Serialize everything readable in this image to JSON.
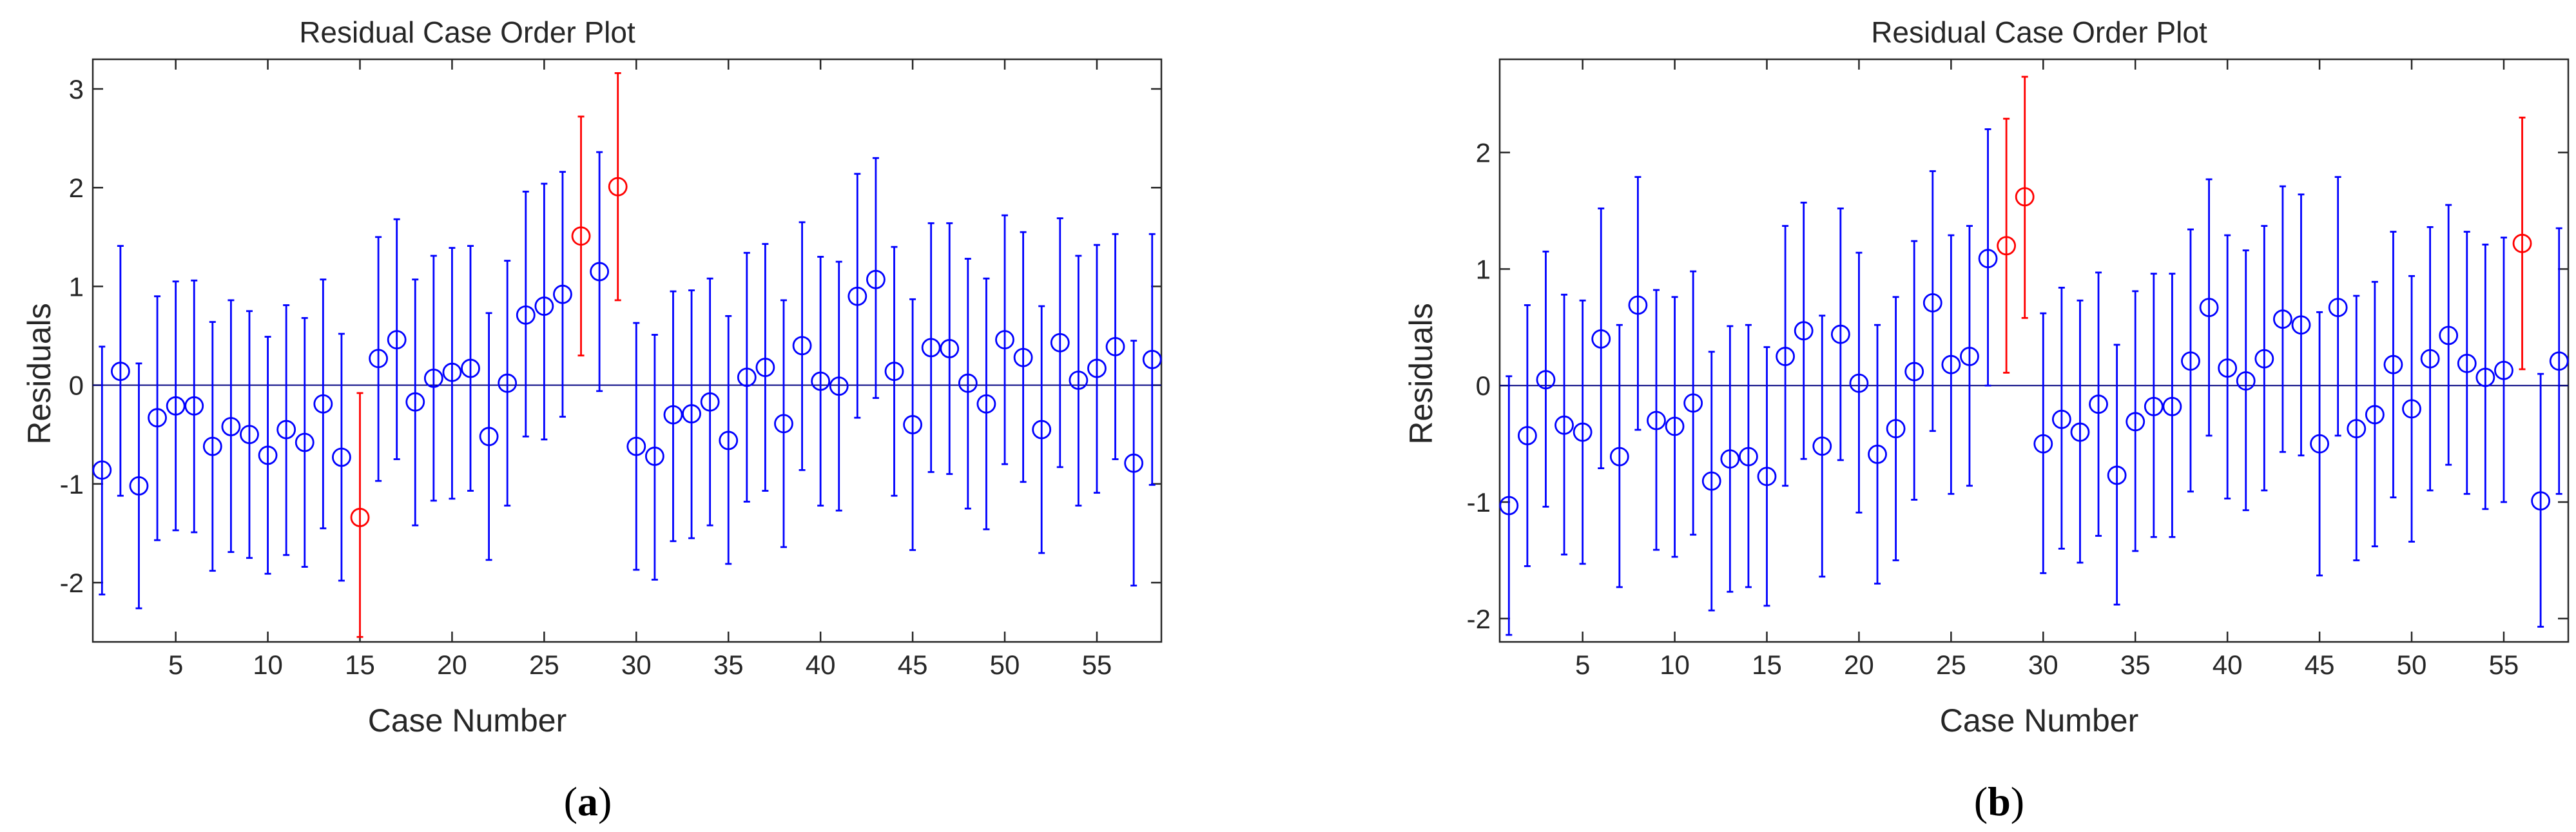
{
  "colors": {
    "normal": "#0000ff",
    "outlier": "#ff0000",
    "axis": "#262626",
    "zero_line": "#000080"
  },
  "chart_data": [
    {
      "type": "scatter",
      "title": "Residual Case Order Plot",
      "xlabel": "Case Number",
      "ylabel": "Residuals",
      "caption_letter": "a",
      "xlim": [
        0.5,
        58.5
      ],
      "ylim": [
        -2.6,
        3.3
      ],
      "xticks": [
        5,
        10,
        15,
        20,
        25,
        30,
        35,
        40,
        45,
        50,
        55
      ],
      "yticks": [
        -2,
        -1,
        0,
        1,
        2,
        3
      ],
      "grid": false,
      "legend": "none",
      "reference_line": 0,
      "x": [
        1,
        2,
        3,
        4,
        5,
        6,
        7,
        8,
        9,
        10,
        11,
        12,
        13,
        14,
        15,
        16,
        17,
        18,
        19,
        20,
        21,
        22,
        23,
        24,
        25,
        26,
        27,
        28,
        29,
        30,
        31,
        32,
        33,
        34,
        35,
        36,
        37,
        38,
        39,
        40,
        41,
        42,
        43,
        44,
        45,
        46,
        47,
        48,
        49,
        50,
        51,
        52,
        53,
        54,
        55,
        56,
        57,
        58
      ],
      "y": [
        -0.86,
        0.14,
        -1.02,
        -0.33,
        -0.21,
        -0.21,
        -0.62,
        -0.42,
        -0.5,
        -0.71,
        -0.45,
        -0.58,
        -0.19,
        -0.73,
        -1.34,
        0.27,
        0.46,
        -0.17,
        0.07,
        0.13,
        0.17,
        -0.52,
        0.02,
        0.71,
        0.8,
        0.92,
        1.51,
        1.15,
        2.01,
        -0.62,
        -0.72,
        -0.3,
        -0.29,
        -0.17,
        -0.56,
        0.08,
        0.18,
        -0.39,
        0.4,
        0.04,
        -0.01,
        0.9,
        1.07,
        0.14,
        -0.4,
        0.38,
        0.37,
        0.02,
        -0.19,
        0.46,
        0.28,
        -0.45,
        0.43,
        0.05,
        0.17,
        0.39,
        -0.79,
        0.26
      ],
      "lower": [
        -2.12,
        -1.12,
        -2.26,
        -1.57,
        -1.47,
        -1.49,
        -1.88,
        -1.69,
        -1.75,
        -1.91,
        -1.72,
        -1.84,
        -1.45,
        -1.98,
        -2.55,
        -0.97,
        -0.75,
        -1.42,
        -1.17,
        -1.15,
        -1.07,
        -1.77,
        -1.22,
        -0.52,
        -0.55,
        -0.32,
        0.3,
        -0.06,
        0.86,
        -1.87,
        -1.97,
        -1.58,
        -1.55,
        -1.42,
        -1.81,
        -1.18,
        -1.07,
        -1.64,
        -0.86,
        -1.22,
        -1.27,
        -0.33,
        -0.13,
        -1.12,
        -1.67,
        -0.88,
        -0.9,
        -1.25,
        -1.46,
        -0.8,
        -0.98,
        -1.7,
        -0.83,
        -1.22,
        -1.09,
        -0.75,
        -2.03,
        -1.01
      ],
      "upper": [
        0.39,
        1.41,
        0.22,
        0.9,
        1.05,
        1.06,
        0.64,
        0.86,
        0.75,
        0.49,
        0.81,
        0.68,
        1.07,
        0.52,
        -0.08,
        1.5,
        1.68,
        1.07,
        1.31,
        1.39,
        1.41,
        0.73,
        1.26,
        1.96,
        2.04,
        2.16,
        2.72,
        2.36,
        3.16,
        0.63,
        0.51,
        0.95,
        0.96,
        1.08,
        0.7,
        1.34,
        1.43,
        0.86,
        1.65,
        1.3,
        1.25,
        2.14,
        2.3,
        1.4,
        0.87,
        1.64,
        1.64,
        1.28,
        1.08,
        1.72,
        1.55,
        0.8,
        1.69,
        1.31,
        1.42,
        1.53,
        0.45,
        1.53
      ],
      "outliers": [
        15,
        27,
        29
      ]
    },
    {
      "type": "scatter",
      "title": "Residual Case Order Plot",
      "xlabel": "Case Number",
      "ylabel": "Residuals",
      "caption_letter": "b",
      "xlim": [
        0.5,
        58.5
      ],
      "ylim": [
        -2.2,
        2.8
      ],
      "xticks": [
        5,
        10,
        15,
        20,
        25,
        30,
        35,
        40,
        45,
        50,
        55
      ],
      "yticks": [
        -2,
        -1,
        0,
        1,
        2
      ],
      "grid": false,
      "legend": "none",
      "reference_line": 0,
      "x": [
        1,
        2,
        3,
        4,
        5,
        6,
        7,
        8,
        9,
        10,
        11,
        12,
        13,
        14,
        15,
        16,
        17,
        18,
        19,
        20,
        21,
        22,
        23,
        24,
        25,
        26,
        27,
        28,
        29,
        30,
        31,
        32,
        33,
        34,
        35,
        36,
        37,
        38,
        39,
        40,
        41,
        42,
        43,
        44,
        45,
        46,
        47,
        48,
        49,
        50,
        51,
        52,
        53,
        54,
        55,
        56,
        57,
        58
      ],
      "y": [
        -1.03,
        -0.43,
        0.05,
        -0.34,
        -0.4,
        0.4,
        -0.61,
        0.69,
        -0.3,
        -0.35,
        -0.15,
        -0.82,
        -0.63,
        -0.61,
        -0.78,
        0.25,
        0.47,
        -0.52,
        0.44,
        0.02,
        -0.59,
        -0.37,
        0.12,
        0.71,
        0.18,
        0.25,
        1.09,
        1.2,
        1.62,
        -0.5,
        -0.29,
        -0.4,
        -0.16,
        -0.77,
        -0.31,
        -0.18,
        -0.18,
        0.21,
        0.67,
        0.15,
        0.04,
        0.23,
        0.57,
        0.52,
        -0.5,
        0.67,
        -0.37,
        -0.25,
        0.18,
        -0.2,
        0.23,
        0.43,
        0.19,
        0.07,
        0.13,
        1.22,
        -0.99,
        0.21
      ],
      "lower": [
        -2.14,
        -1.55,
        -1.04,
        -1.45,
        -1.53,
        -0.71,
        -1.73,
        -0.38,
        -1.41,
        -1.47,
        -1.28,
        -1.93,
        -1.77,
        -1.73,
        -1.89,
        -0.86,
        -0.63,
        -1.64,
        -0.64,
        -1.09,
        -1.7,
        -1.5,
        -0.98,
        -0.39,
        -0.93,
        -0.86,
        0.0,
        0.11,
        0.58,
        -1.61,
        -1.4,
        -1.52,
        -1.29,
        -1.88,
        -1.42,
        -1.3,
        -1.3,
        -0.91,
        -0.43,
        -0.97,
        -1.07,
        -0.9,
        -0.57,
        -0.6,
        -1.63,
        -0.43,
        -1.5,
        -1.38,
        -0.96,
        -1.34,
        -0.9,
        -0.68,
        -0.93,
        -1.06,
        -1.0,
        0.14,
        -2.07,
        -0.93
      ],
      "upper": [
        0.08,
        0.69,
        1.15,
        0.78,
        0.73,
        1.52,
        0.52,
        1.79,
        0.82,
        0.76,
        0.98,
        0.29,
        0.51,
        0.52,
        0.33,
        1.37,
        1.57,
        0.6,
        1.52,
        1.14,
        0.52,
        0.76,
        1.24,
        1.84,
        1.29,
        1.37,
        2.2,
        2.29,
        2.65,
        0.62,
        0.84,
        0.73,
        0.97,
        0.35,
        0.81,
        0.96,
        0.96,
        1.34,
        1.77,
        1.29,
        1.16,
        1.37,
        1.71,
        1.64,
        0.63,
        1.79,
        0.77,
        0.89,
        1.32,
        0.94,
        1.36,
        1.55,
        1.32,
        1.21,
        1.27,
        2.3,
        0.1,
        1.35
      ],
      "outliers": [
        28,
        29,
        56
      ]
    }
  ]
}
